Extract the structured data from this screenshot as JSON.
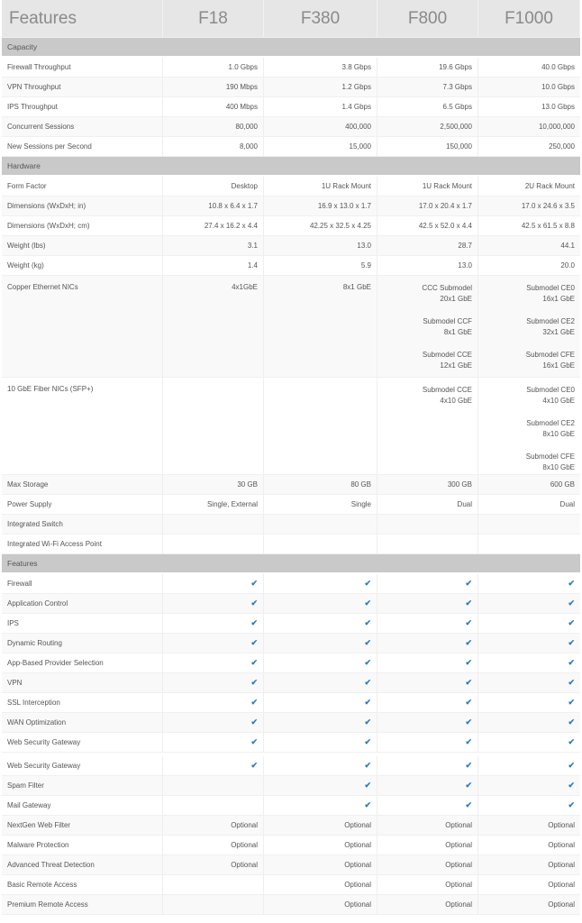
{
  "header": {
    "title": "Features",
    "models": [
      "F18",
      "F380",
      "F800",
      "F1000"
    ]
  },
  "colors": {
    "check": "#2b7bc0",
    "section_bg": "#c9c9c9",
    "header_bg": "#e6e6e6"
  },
  "rows": [
    {
      "type": "section",
      "label": "Capacity"
    },
    {
      "type": "row",
      "label": "Firewall Throughput",
      "values": [
        "1.0 Gbps",
        "3.8 Gbps",
        "19.6 Gbps",
        "40.0 Gbps"
      ]
    },
    {
      "type": "row",
      "label": "VPN Throughput",
      "values": [
        "190 Mbps",
        "1.2 Gbps",
        "7.3 Gbps",
        "10.0 Gbps"
      ]
    },
    {
      "type": "row",
      "label": "IPS Throughput",
      "values": [
        "400 Mbps",
        "1.4 Gbps",
        "6.5 Gbps",
        "13.0 Gbps"
      ]
    },
    {
      "type": "row",
      "label": "Concurrent Sessions",
      "values": [
        "80,000",
        "400,000",
        "2,500,000",
        "10,000,000"
      ]
    },
    {
      "type": "row",
      "label": "New Sessions per Second",
      "values": [
        "8,000",
        "15,000",
        "150,000",
        "250,000"
      ]
    },
    {
      "type": "section",
      "label": "Hardware"
    },
    {
      "type": "row",
      "label": "Form Factor",
      "values": [
        "Desktop",
        "1U Rack Mount",
        "1U Rack Mount",
        "2U Rack Mount"
      ]
    },
    {
      "type": "row",
      "label": "Dimensions (WxDxH; in)",
      "values": [
        "10.8 x 6.4 x 1.7",
        "16.9 x 13.0 x 1.7",
        "17.0 x 20.4 x 1.7",
        "17.0 x 24.6 x 3.5"
      ]
    },
    {
      "type": "row",
      "label": "Dimensions (WxDxH; cm)",
      "values": [
        "27.4 x 16.2 x 4.4",
        "42.25 x 32.5 x 4.25",
        "42.5 x 52.0 x 4.4",
        "42.5 x 61.5 x 8.8"
      ]
    },
    {
      "type": "row",
      "label": "Weight (lbs)",
      "values": [
        "3.1",
        "13.0",
        "28.7",
        "44.1"
      ]
    },
    {
      "type": "row",
      "label": "Weight (kg)",
      "values": [
        "1.4",
        "5.9",
        "13.0",
        "20.0"
      ]
    },
    {
      "type": "tall",
      "height": 113,
      "label": "Copper Ethernet NICs",
      "values": [
        "4x1GbE",
        "8x1 GbE",
        [
          {
            "name": "CCC Submodel",
            "value": "20x1 GbE"
          },
          {
            "name": "Submodel CCF",
            "value": "8x1 GbE"
          },
          {
            "name": "Submodel CCE",
            "value": "12x1 GbE"
          }
        ],
        [
          {
            "name": "Submodel CE0",
            "value": "16x1 GbE"
          },
          {
            "name": "Submodel CE2",
            "value": "32x1 GbE"
          },
          {
            "name": "Submodel CFE",
            "value": "16x1 GbE"
          }
        ]
      ]
    },
    {
      "type": "tall",
      "height": 108,
      "label": "10 GbE Fiber NICs (SFP+)",
      "values": [
        "",
        "",
        [
          {
            "name": "Submodel CCE",
            "value": "4x10 GbE"
          }
        ],
        [
          {
            "name": "Submodel CE0",
            "value": "4x10 GbE"
          },
          {
            "name": "Submodel CE2",
            "value": "8x10 GbE"
          },
          {
            "name": "Submodel CFE",
            "value": "8x10 GbE"
          }
        ]
      ]
    },
    {
      "type": "row",
      "label": "Max Storage",
      "values": [
        "30 GB",
        "80 GB",
        "300 GB",
        "600 GB"
      ]
    },
    {
      "type": "row",
      "label": "Power Supply",
      "values": [
        "Single, External",
        "Single",
        "Dual",
        "Dual"
      ]
    },
    {
      "type": "row",
      "label": "Integrated Switch",
      "values": [
        "",
        "",
        "",
        ""
      ]
    },
    {
      "type": "row",
      "label": "Integrated Wi-Fi Access Point",
      "values": [
        "",
        "",
        "",
        ""
      ]
    },
    {
      "type": "section",
      "label": "Features"
    },
    {
      "type": "row",
      "label": "Firewall",
      "values": [
        "check",
        "check",
        "check",
        "check"
      ]
    },
    {
      "type": "row",
      "label": "Application Control",
      "values": [
        "check",
        "check",
        "check",
        "check"
      ]
    },
    {
      "type": "row",
      "label": "IPS",
      "values": [
        "check",
        "check",
        "check",
        "check"
      ]
    },
    {
      "type": "row",
      "label": "Dynamic Routing",
      "values": [
        "check",
        "check",
        "check",
        "check"
      ]
    },
    {
      "type": "row",
      "label": "App-Based Provider Selection",
      "values": [
        "check",
        "check",
        "check",
        "check"
      ]
    },
    {
      "type": "row",
      "label": "VPN",
      "values": [
        "check",
        "check",
        "check",
        "check"
      ]
    },
    {
      "type": "row",
      "label": "SSL Interception",
      "values": [
        "check",
        "check",
        "check",
        "check"
      ]
    },
    {
      "type": "row",
      "label": "WAN Optimization",
      "values": [
        "check",
        "check",
        "check",
        "check"
      ]
    },
    {
      "type": "row",
      "label": "Web Security Gateway",
      "values": [
        "check",
        "check",
        "check",
        "check"
      ]
    },
    {
      "type": "glitch"
    },
    {
      "type": "row",
      "label": "Web Security Gateway",
      "values": [
        "check",
        "check",
        "check",
        "check"
      ]
    },
    {
      "type": "row",
      "label": "Spam Filter",
      "values": [
        "",
        "check",
        "check",
        "check"
      ]
    },
    {
      "type": "row",
      "label": "Mail Gateway",
      "values": [
        "",
        "check",
        "check",
        "check"
      ]
    },
    {
      "type": "row",
      "label": "NextGen Web Filter",
      "values": [
        "Optional",
        "Optional",
        "Optional",
        "Optional"
      ]
    },
    {
      "type": "row",
      "label": "Malware Protection",
      "values": [
        "Optional",
        "Optional",
        "Optional",
        "Optional"
      ]
    },
    {
      "type": "row",
      "label": "Advanced Threat Detection",
      "values": [
        "Optional",
        "Optional",
        "Optional",
        "Optional"
      ]
    },
    {
      "type": "row",
      "label": "Basic Remote Access",
      "values": [
        "",
        "Optional",
        "Optional",
        "Optional"
      ]
    },
    {
      "type": "row",
      "label": "Premium Remote Access",
      "values": [
        "",
        "Optional",
        "Optional",
        "Optional"
      ]
    }
  ]
}
